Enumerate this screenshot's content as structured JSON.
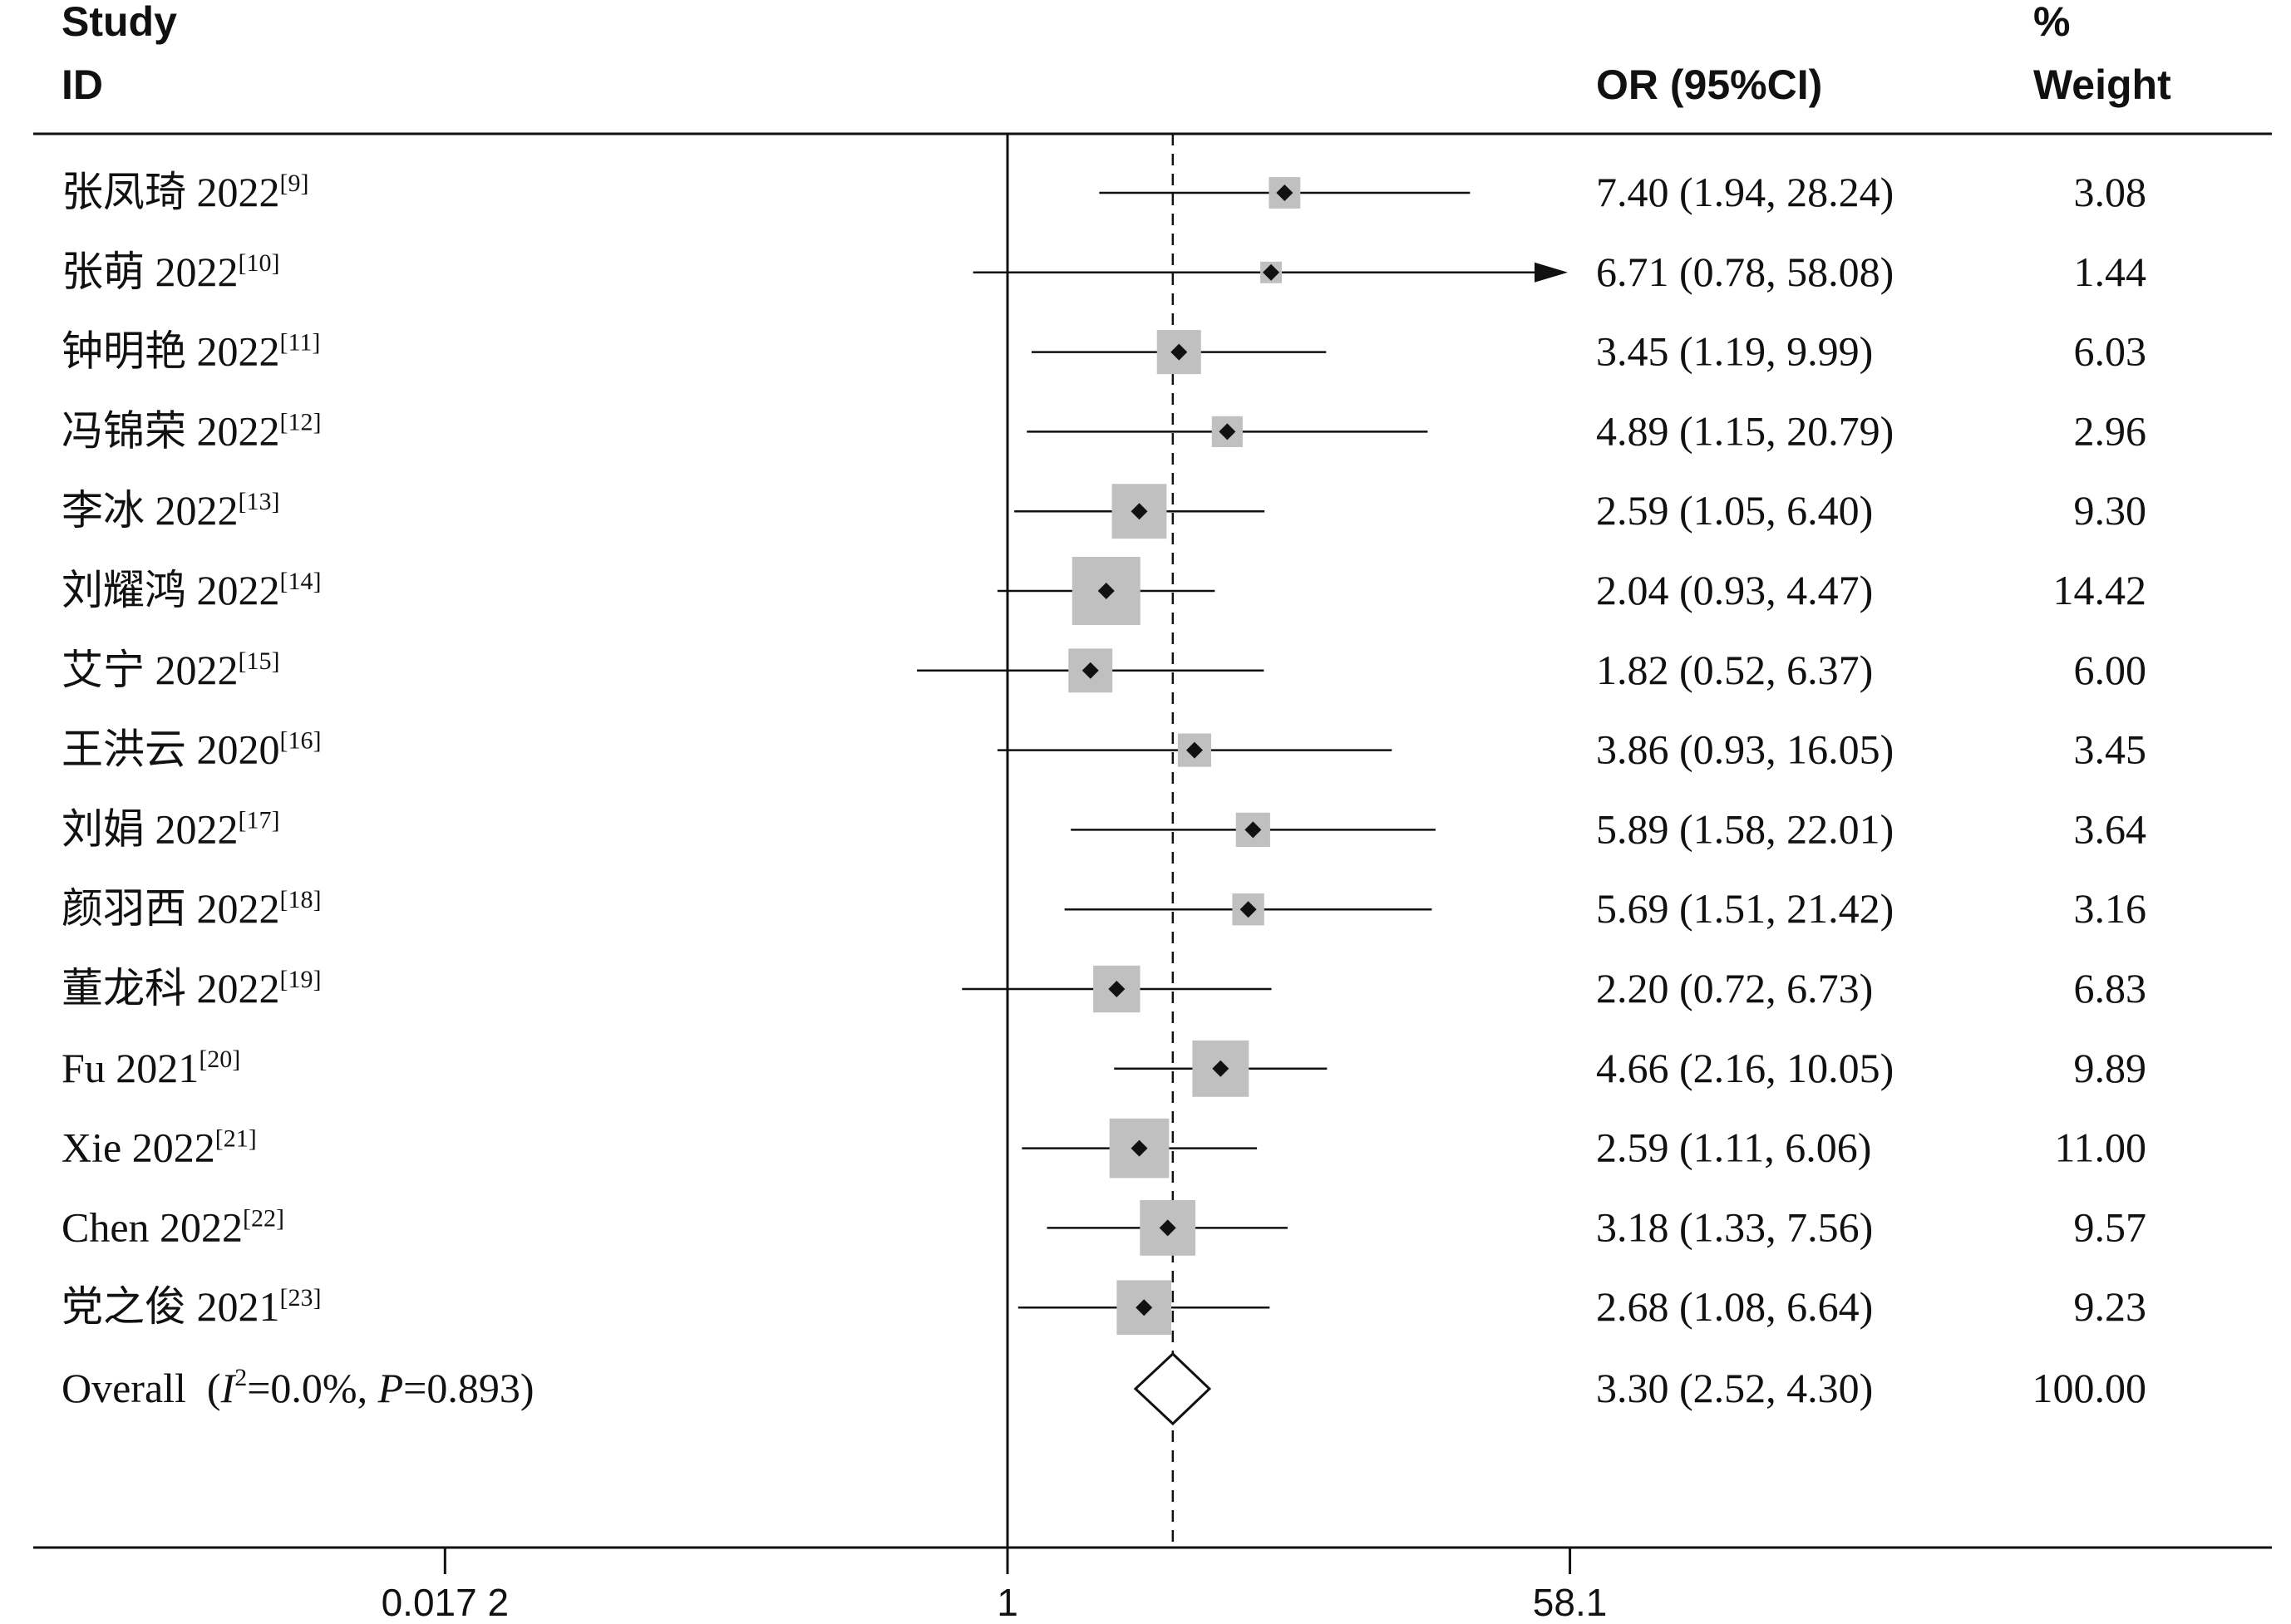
{
  "chart_data": {
    "type": "forest",
    "headers": {
      "study": [
        "Study",
        "ID"
      ],
      "or": "OR (95%CI)",
      "weight": [
        "%",
        "Weight"
      ]
    },
    "x_scale": "log",
    "reference_value": 1,
    "overall_line_value": 3.3,
    "x_ticks": [
      {
        "value": 0.0172,
        "label": "0.017 2"
      },
      {
        "value": 1,
        "label": "1"
      },
      {
        "value": 58.1,
        "label": "58.1"
      }
    ],
    "studies": [
      {
        "name": "张凤琦 2022",
        "ref": "[9]",
        "or": 7.4,
        "lo": 1.94,
        "hi": 28.24,
        "or_text": "7.40 (1.94, 28.24)",
        "weight": 3.08,
        "weight_text": "3.08"
      },
      {
        "name": "张萌 2022",
        "ref": "[10]",
        "or": 6.71,
        "lo": 0.78,
        "hi": 58.08,
        "or_text": "6.71 (0.78, 58.08)",
        "weight": 1.44,
        "weight_text": "1.44",
        "arrow": true
      },
      {
        "name": "钟明艳 2022",
        "ref": "[11]",
        "or": 3.45,
        "lo": 1.19,
        "hi": 9.99,
        "or_text": "3.45 (1.19, 9.99)",
        "weight": 6.03,
        "weight_text": "6.03"
      },
      {
        "name": "冯锦荣 2022",
        "ref": "[12]",
        "or": 4.89,
        "lo": 1.15,
        "hi": 20.79,
        "or_text": "4.89 (1.15, 20.79)",
        "weight": 2.96,
        "weight_text": "2.96"
      },
      {
        "name": "李冰 2022",
        "ref": "[13]",
        "or": 2.59,
        "lo": 1.05,
        "hi": 6.4,
        "or_text": "2.59 (1.05, 6.40)",
        "weight": 9.3,
        "weight_text": "9.30"
      },
      {
        "name": "刘耀鸿 2022",
        "ref": "[14]",
        "or": 2.04,
        "lo": 0.93,
        "hi": 4.47,
        "or_text": "2.04 (0.93, 4.47)",
        "weight": 14.42,
        "weight_text": "14.42"
      },
      {
        "name": "艾宁 2022",
        "ref": "[15]",
        "or": 1.82,
        "lo": 0.52,
        "hi": 6.37,
        "or_text": "1.82 (0.52, 6.37)",
        "weight": 6.0,
        "weight_text": "6.00"
      },
      {
        "name": "王洪云 2020",
        "ref": "[16]",
        "or": 3.86,
        "lo": 0.93,
        "hi": 16.05,
        "or_text": "3.86 (0.93, 16.05)",
        "weight": 3.45,
        "weight_text": "3.45"
      },
      {
        "name": "刘娟 2022",
        "ref": "[17]",
        "or": 5.89,
        "lo": 1.58,
        "hi": 22.01,
        "or_text": "5.89 (1.58, 22.01)",
        "weight": 3.64,
        "weight_text": "3.64"
      },
      {
        "name": "颜羽西 2022",
        "ref": "[18]",
        "or": 5.69,
        "lo": 1.51,
        "hi": 21.42,
        "or_text": "5.69 (1.51, 21.42)",
        "weight": 3.16,
        "weight_text": "3.16"
      },
      {
        "name": "董龙科 2022",
        "ref": "[19]",
        "or": 2.2,
        "lo": 0.72,
        "hi": 6.73,
        "or_text": "2.20 (0.72, 6.73)",
        "weight": 6.83,
        "weight_text": "6.83"
      },
      {
        "name": "Fu 2021",
        "ref": "[20]",
        "or": 4.66,
        "lo": 2.16,
        "hi": 10.05,
        "or_text": "4.66 (2.16, 10.05)",
        "weight": 9.89,
        "weight_text": "9.89"
      },
      {
        "name": "Xie 2022",
        "ref": "[21]",
        "or": 2.59,
        "lo": 1.11,
        "hi": 6.06,
        "or_text": "2.59 (1.11, 6.06)",
        "weight": 11.0,
        "weight_text": "11.00"
      },
      {
        "name": "Chen 2022",
        "ref": "[22]",
        "or": 3.18,
        "lo": 1.33,
        "hi": 7.56,
        "or_text": "3.18 (1.33, 7.56)",
        "weight": 9.57,
        "weight_text": "9.57"
      },
      {
        "name": "党之俊 2021",
        "ref": "[23]",
        "or": 2.68,
        "lo": 1.08,
        "hi": 6.64,
        "or_text": "2.68 (1.08, 6.64)",
        "weight": 9.23,
        "weight_text": "9.23"
      }
    ],
    "overall": {
      "label_prefix": "Overall  (",
      "i_symbol": "I",
      "i_sup": "2",
      "i_value": "=0.0%, ",
      "p_symbol": "P",
      "p_value": "=0.893)",
      "or": 3.3,
      "lo": 2.52,
      "hi": 4.3,
      "or_text": "3.30 (2.52, 4.30)",
      "weight_text": "100.00"
    },
    "colors": {
      "box": "#c0c0c0",
      "line": "#111111"
    }
  }
}
